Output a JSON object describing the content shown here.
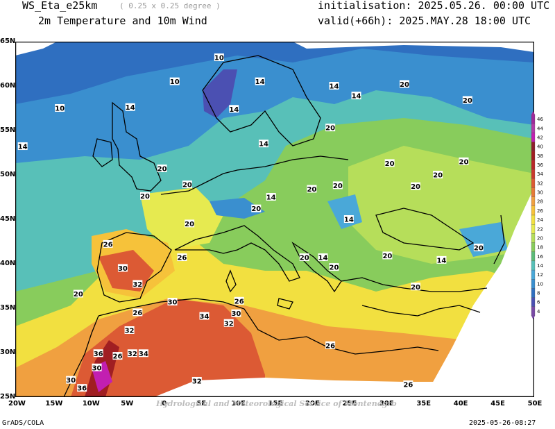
{
  "header": {
    "model": "WS_Eta_e25km",
    "resolution": "( 0.25 x 0.25 degree )",
    "field": "2m Temperature and 10m Wind",
    "init": "initialisation: 2025.05.26. 00:00 UTC",
    "valid": "valid(+66h): 2025.MAY.28 18:00 UTC"
  },
  "footer": {
    "left": "GrADS/COLA",
    "right": "2025-05-26-08:27",
    "watermark": "Hydrological and Meteorological Service of Montenegro"
  },
  "axes": {
    "lat_ticks": [
      "65N",
      "60N",
      "55N",
      "50N",
      "45N",
      "40N",
      "35N",
      "30N",
      "25N"
    ],
    "lon_ticks": [
      "20W",
      "15W",
      "10W",
      "5W",
      "0",
      "5E",
      "10E",
      "15E",
      "20E",
      "25E",
      "30E",
      "35E",
      "40E",
      "45E",
      "50E"
    ]
  },
  "colorbar": {
    "levels": [
      "46",
      "44",
      "42",
      "40",
      "38",
      "36",
      "34",
      "32",
      "30",
      "28",
      "26",
      "24",
      "22",
      "20",
      "18",
      "16",
      "14",
      "12",
      "10",
      "8",
      "6",
      "4"
    ],
    "colors": [
      "#a02a9a",
      "#b23aa8",
      "#c21fb1",
      "#8e1f2c",
      "#a01e22",
      "#b8282a",
      "#c93a2e",
      "#dc5a34",
      "#e67a38",
      "#f0a040",
      "#f6c23a",
      "#f2e040",
      "#e6ea50",
      "#b6de5a",
      "#88cc5c",
      "#5cbb78",
      "#58c0b8",
      "#4aa8d8",
      "#3a8fcf",
      "#2f6fc0",
      "#4b50b2",
      "#7a4aa6"
    ]
  },
  "contour_labels": [
    {
      "text": "10",
      "lon": 7.5,
      "lat": 63.2
    },
    {
      "text": "10",
      "lon": 1.5,
      "lat": 60.5
    },
    {
      "text": "10",
      "lon": -14,
      "lat": 57.5
    },
    {
      "text": "14",
      "lon": 13,
      "lat": 60.5
    },
    {
      "text": "14",
      "lon": 23,
      "lat": 60.0
    },
    {
      "text": "14",
      "lon": 26,
      "lat": 58.9
    },
    {
      "text": "14",
      "lon": -4.5,
      "lat": 57.6
    },
    {
      "text": "14",
      "lon": 9.5,
      "lat": 57.4
    },
    {
      "text": "14",
      "lon": 13.5,
      "lat": 53.5
    },
    {
      "text": "14",
      "lon": -19,
      "lat": 53.2
    },
    {
      "text": "20",
      "lon": 32.5,
      "lat": 60.2
    },
    {
      "text": "20",
      "lon": 41,
      "lat": 58.4
    },
    {
      "text": "20",
      "lon": 22.5,
      "lat": 55.3
    },
    {
      "text": "20",
      "lon": -0.2,
      "lat": 50.7
    },
    {
      "text": "20",
      "lon": 3.2,
      "lat": 48.9
    },
    {
      "text": "20",
      "lon": 30.5,
      "lat": 51.3
    },
    {
      "text": "20",
      "lon": 37,
      "lat": 50.0
    },
    {
      "text": "20",
      "lon": 40.5,
      "lat": 51.5
    },
    {
      "text": "20",
      "lon": 20,
      "lat": 48.4
    },
    {
      "text": "20",
      "lon": 23.5,
      "lat": 48.8
    },
    {
      "text": "20",
      "lon": 34,
      "lat": 48.7
    },
    {
      "text": "20",
      "lon": -2.5,
      "lat": 47.6
    },
    {
      "text": "20",
      "lon": 12.5,
      "lat": 46.2
    },
    {
      "text": "14",
      "lon": 14.5,
      "lat": 47.5
    },
    {
      "text": "14",
      "lon": 25,
      "lat": 45.0
    },
    {
      "text": "20",
      "lon": 3.5,
      "lat": 44.5
    },
    {
      "text": "20",
      "lon": 19,
      "lat": 40.7
    },
    {
      "text": "14",
      "lon": 21.5,
      "lat": 40.7
    },
    {
      "text": "20",
      "lon": 23,
      "lat": 39.6
    },
    {
      "text": "20",
      "lon": 30.2,
      "lat": 40.9
    },
    {
      "text": "14",
      "lon": 37.5,
      "lat": 40.4
    },
    {
      "text": "20",
      "lon": 42.5,
      "lat": 41.8
    },
    {
      "text": "20",
      "lon": 34,
      "lat": 37.4
    },
    {
      "text": "20",
      "lon": -11.5,
      "lat": 36.6
    },
    {
      "text": "26",
      "lon": -7.5,
      "lat": 42.2
    },
    {
      "text": "26",
      "lon": 2.5,
      "lat": 40.7
    },
    {
      "text": "30",
      "lon": -5.5,
      "lat": 39.5
    },
    {
      "text": "32",
      "lon": -3.5,
      "lat": 37.7
    },
    {
      "text": "26",
      "lon": -3.5,
      "lat": 34.5
    },
    {
      "text": "30",
      "lon": 1.2,
      "lat": 35.7
    },
    {
      "text": "26",
      "lon": 10.2,
      "lat": 35.8
    },
    {
      "text": "30",
      "lon": 9.8,
      "lat": 34.4
    },
    {
      "text": "34",
      "lon": 5.5,
      "lat": 34.1
    },
    {
      "text": "32",
      "lon": 8.8,
      "lat": 33.3
    },
    {
      "text": "32",
      "lon": -4.6,
      "lat": 32.5
    },
    {
      "text": "36",
      "lon": -8.8,
      "lat": 29.9
    },
    {
      "text": "26",
      "lon": -6.2,
      "lat": 29.6
    },
    {
      "text": "32",
      "lon": -4.2,
      "lat": 29.9
    },
    {
      "text": "34",
      "lon": -2.7,
      "lat": 29.9
    },
    {
      "text": "30",
      "lon": -9.0,
      "lat": 28.3
    },
    {
      "text": "30",
      "lon": -12.5,
      "lat": 26.9
    },
    {
      "text": "36",
      "lon": -11.0,
      "lat": 26.0
    },
    {
      "text": "32",
      "lon": 4.5,
      "lat": 26.8
    },
    {
      "text": "26",
      "lon": 22.5,
      "lat": 30.8
    },
    {
      "text": "26",
      "lon": 33.0,
      "lat": 26.4
    }
  ]
}
